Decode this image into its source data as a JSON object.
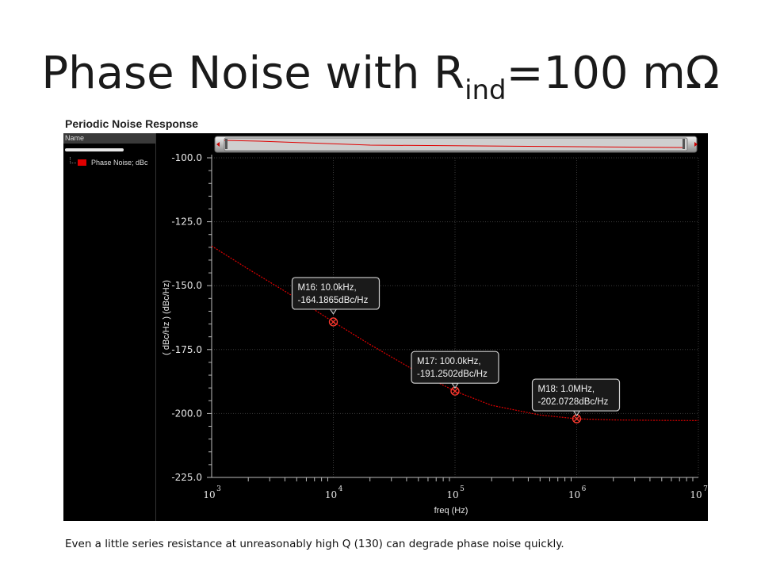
{
  "slide": {
    "title_main": "Phase Noise with R",
    "title_sub": "ind",
    "title_tail": "=100 mΩ",
    "caption": "Even a little series resistance at unreasonably high Q (130) can degrade phase noise quickly."
  },
  "window": {
    "panel_title": "Periodic Noise Response",
    "legend_header": "Name",
    "legend_entry": "Phase Noise; dBc"
  },
  "colors": {
    "trace": "#e00000",
    "grid": "#3a3a3a",
    "background": "#000000",
    "marker": "#ff3b30"
  },
  "chart_data": {
    "type": "line",
    "title": "",
    "xlabel": "freq (Hz)",
    "ylabel": "( dBc/Hz ) (dBc/Hz)",
    "x_scale": "log",
    "xlim": [
      1000,
      10000000
    ],
    "ylim": [
      -225.0,
      -100.0
    ],
    "x_ticks": [
      {
        "base": "10",
        "exp": "3"
      },
      {
        "base": "10",
        "exp": "4"
      },
      {
        "base": "10",
        "exp": "5"
      },
      {
        "base": "10",
        "exp": "6"
      },
      {
        "base": "10",
        "exp": "7"
      }
    ],
    "y_ticks": [
      "-100.0",
      "-125.0",
      "-150.0",
      "-175.0",
      "-200.0",
      "-225.0"
    ],
    "grid": true,
    "series": [
      {
        "name": "Phase Noise; dBc",
        "x": [
          1000,
          2000,
          5000,
          10000,
          20000,
          50000,
          100000,
          200000,
          500000,
          1000000,
          2000000,
          5000000,
          10000000
        ],
        "values": [
          -134.5,
          -143.5,
          -155.0,
          -164.19,
          -173.0,
          -184.0,
          -191.25,
          -196.8,
          -200.6,
          -202.07,
          -202.5,
          -202.7,
          -202.8
        ]
      }
    ],
    "markers": [
      {
        "x": 10000,
        "y": -164.1865,
        "line1": "M16: 10.0kHz,",
        "line2": "-164.1865dBc/Hz"
      },
      {
        "x": 100000,
        "y": -191.2502,
        "line1": "M17: 100.0kHz,",
        "line2": "-191.2502dBc/Hz"
      },
      {
        "x": 1000000,
        "y": -202.0728,
        "line1": "M18: 1.0MHz,",
        "line2": "-202.0728dBc/Hz"
      }
    ]
  }
}
